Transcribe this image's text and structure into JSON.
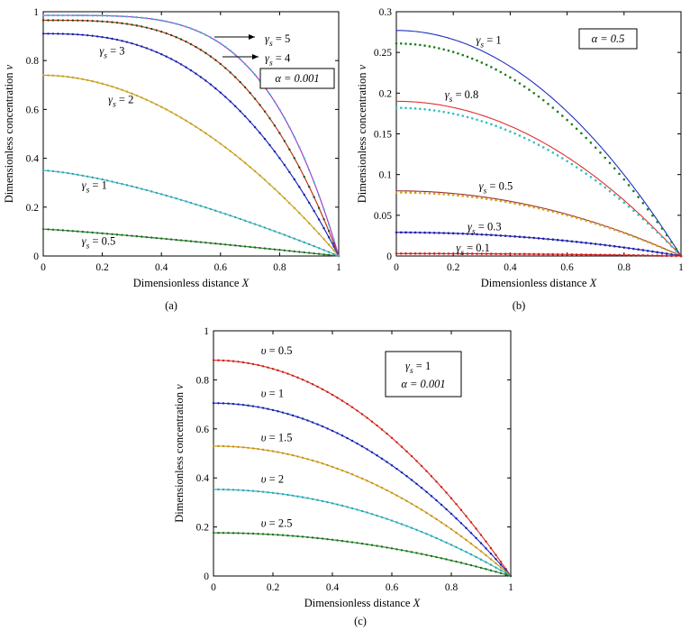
{
  "chart_data": [
    {
      "panel": "(a)",
      "type": "line",
      "xlabel": "Dimensionless distance X",
      "ylabel": "Dimensionless concentration v",
      "xlim": [
        0,
        1
      ],
      "ylim": [
        0,
        1
      ],
      "xticks": [
        "0",
        "0.2",
        "0.4",
        "0.6",
        "0.8",
        "1"
      ],
      "yticks": [
        "0",
        "0.2",
        "0.4",
        "0.6",
        "0.8",
        "1"
      ],
      "annotation_box": "α = 0.001",
      "series": [
        {
          "name": "γs = 0.5",
          "v0": 0.11,
          "shape": 1.15,
          "color": "#2f7f2f",
          "marker_color": "#1e6b1e",
          "label_x": 0.13,
          "label_y": 0.06
        },
        {
          "name": "γs = 1",
          "v0": 0.35,
          "shape": 1.4,
          "color": "#4fb6c0",
          "marker_color": "#2aa3b0",
          "label_x": 0.13,
          "label_y": 0.29
        },
        {
          "name": "γs = 2",
          "v0": 0.74,
          "shape": 1.9,
          "color": "#c8a020",
          "marker_color": "#c8a020",
          "label_x": 0.22,
          "label_y": 0.64
        },
        {
          "name": "γs = 3",
          "v0": 0.91,
          "shape": 2.6,
          "color": "#1f2fbf",
          "marker_color": "#1f1fa0",
          "label_x": 0.19,
          "label_y": 0.84
        },
        {
          "name": "γs = 4",
          "v0": 0.965,
          "shape": 3.3,
          "color": "#b83a1a",
          "marker_color": "#1f4a1f",
          "label_x": 0.75,
          "label_y": 0.81
        },
        {
          "name": "γs = 5",
          "v0": 0.985,
          "shape": 4.2,
          "color": "#9a3fd0",
          "marker_color": "#3fb8c8",
          "label_x": 0.75,
          "label_y": 0.89
        }
      ]
    },
    {
      "panel": "(b)",
      "type": "line",
      "xlabel": "Dimensionless distance X",
      "ylabel": "Dimensionless concentration v",
      "xlim": [
        0,
        1
      ],
      "ylim": [
        0,
        0.3
      ],
      "xticks": [
        "0",
        "0.2",
        "0.4",
        "0.6",
        "0.8",
        "1"
      ],
      "yticks": [
        "0",
        "0.05",
        "0.1",
        "0.15",
        "0.2",
        "0.25",
        "0.3"
      ],
      "annotation_box": "α = 0.5",
      "series": [
        {
          "name": "γs = 1",
          "line_v0": 0.277,
          "dot_v0": 0.261,
          "line_color": "#2030c0",
          "dot_color": "#1a7f1a",
          "label_x": 0.28,
          "label_y": 0.265
        },
        {
          "name": "γs = 0.8",
          "line_v0": 0.19,
          "dot_v0": 0.182,
          "line_color": "#e03030",
          "dot_color": "#30c0c0",
          "label_x": 0.17,
          "label_y": 0.198
        },
        {
          "name": "γs = 0.5",
          "line_v0": 0.08,
          "dot_v0": 0.078,
          "line_color": "#9a3030",
          "dot_color": "#d0a020",
          "label_x": 0.29,
          "label_y": 0.086
        },
        {
          "name": "γs = 0.3",
          "line_v0": 0.029,
          "dot_v0": 0.029,
          "line_color": "#2020b0",
          "dot_color": "#2020b0",
          "label_x": 0.25,
          "label_y": 0.036
        },
        {
          "name": "γs = 0.1",
          "line_v0": 0.003,
          "dot_v0": 0.003,
          "line_color": "#d02020",
          "dot_color": "#d02020",
          "label_x": 0.21,
          "label_y": 0.01
        }
      ]
    },
    {
      "panel": "(c)",
      "type": "line",
      "xlabel": "Dimensionless distance X",
      "ylabel": "Dimensionless concentration v",
      "xlim": [
        0,
        1
      ],
      "ylim": [
        0,
        1
      ],
      "xticks": [
        "0",
        "0.2",
        "0.4",
        "0.6",
        "0.8",
        "1"
      ],
      "yticks": [
        "0",
        "0.2",
        "0.4",
        "0.6",
        "0.8",
        "1"
      ],
      "annotation_box": [
        "γs = 1",
        "α = 0.001"
      ],
      "series": [
        {
          "name": "υ = 0.5",
          "v0": 0.88,
          "color": "#e03a2a",
          "marker_color": "#c02020",
          "label_x": 0.16,
          "label_y": 0.92
        },
        {
          "name": "υ = 1",
          "v0": 0.705,
          "color": "#2838c8",
          "marker_color": "#1020a0",
          "label_x": 0.16,
          "label_y": 0.745
        },
        {
          "name": "υ = 1.5",
          "v0": 0.53,
          "color": "#d0a020",
          "marker_color": "#c89018",
          "label_x": 0.16,
          "label_y": 0.565
        },
        {
          "name": "υ = 2",
          "v0": 0.353,
          "color": "#3ab8c0",
          "marker_color": "#2aa3b0",
          "label_x": 0.16,
          "label_y": 0.395
        },
        {
          "name": "υ = 2.5",
          "v0": 0.176,
          "color": "#2f8f2f",
          "marker_color": "#1e6b1e",
          "label_x": 0.16,
          "label_y": 0.215
        }
      ]
    }
  ]
}
